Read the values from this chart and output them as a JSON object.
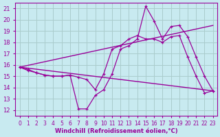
{
  "title": "",
  "xlabel": "Windchill (Refroidissement éolien,°C)",
  "ylabel": "",
  "bg_color": "#c8eaf0",
  "line_color": "#990099",
  "grid_color": "#aacccc",
  "xlim": [
    -0.5,
    23.5
  ],
  "ylim": [
    11.5,
    21.5
  ],
  "xticks": [
    0,
    1,
    2,
    3,
    4,
    5,
    6,
    7,
    8,
    9,
    10,
    11,
    12,
    13,
    14,
    15,
    16,
    17,
    18,
    19,
    20,
    21,
    22,
    23
  ],
  "yticks": [
    12,
    13,
    14,
    15,
    16,
    17,
    18,
    19,
    20,
    21
  ],
  "series1_x": [
    0,
    1,
    2,
    3,
    4,
    5,
    6,
    7,
    8,
    9,
    10,
    11,
    12,
    13,
    14,
    15,
    16,
    17,
    18,
    19,
    20,
    21,
    22,
    23
  ],
  "series1_y": [
    15.8,
    15.6,
    15.3,
    15.1,
    15.0,
    15.0,
    15.1,
    12.1,
    12.1,
    13.3,
    13.8,
    15.2,
    17.4,
    17.7,
    18.3,
    21.2,
    19.9,
    18.3,
    19.4,
    19.5,
    18.5,
    16.7,
    15.0,
    13.7
  ],
  "series2_x": [
    0,
    1,
    2,
    3,
    4,
    5,
    6,
    7,
    8,
    9,
    10,
    11,
    12,
    13,
    14,
    15,
    16,
    17,
    18,
    19,
    20,
    21,
    22,
    23
  ],
  "series2_y": [
    15.8,
    15.5,
    15.3,
    15.1,
    15.0,
    15.0,
    15.1,
    14.9,
    14.7,
    13.8,
    15.2,
    17.4,
    17.7,
    18.3,
    18.6,
    18.3,
    18.3,
    18.0,
    18.5,
    18.6,
    16.7,
    15.0,
    13.5,
    13.7
  ],
  "series3_x": [
    0,
    23
  ],
  "series3_y": [
    15.8,
    19.5
  ],
  "series4_x": [
    0,
    23
  ],
  "series4_y": [
    15.8,
    13.7
  ]
}
